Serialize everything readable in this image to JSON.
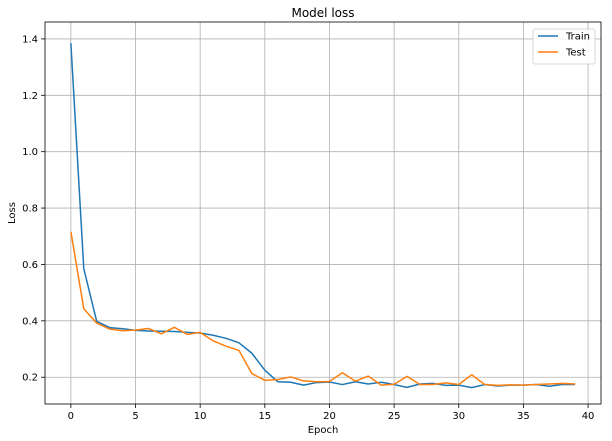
{
  "chart_data": {
    "type": "line",
    "title": "Model loss",
    "xlabel": "Epoch",
    "ylabel": "Loss",
    "xlim": [
      -2,
      41
    ],
    "ylim": [
      0.105,
      1.46
    ],
    "grid": true,
    "legend_position": "top-right",
    "x_ticks": [
      0,
      5,
      10,
      15,
      20,
      25,
      30,
      35,
      40
    ],
    "x_tick_labels": [
      "0",
      "5",
      "10",
      "15",
      "20",
      "25",
      "30",
      "35",
      "40"
    ],
    "y_ticks": [
      0.2,
      0.4,
      0.6,
      0.8,
      1.0,
      1.2,
      1.4
    ],
    "y_tick_labels": [
      "0.2",
      "0.4",
      "0.6",
      "0.8",
      "1.0",
      "1.2",
      "1.4"
    ],
    "x": [
      0,
      1,
      2,
      3,
      4,
      5,
      6,
      7,
      8,
      9,
      10,
      11,
      12,
      13,
      14,
      15,
      16,
      17,
      18,
      19,
      20,
      21,
      22,
      23,
      24,
      25,
      26,
      27,
      28,
      29,
      30,
      31,
      32,
      33,
      34,
      35,
      36,
      37,
      38,
      39
    ],
    "series": [
      {
        "name": "Train",
        "color": "#1f77b4",
        "values": [
          1.385,
          0.585,
          0.398,
          0.376,
          0.372,
          0.366,
          0.364,
          0.363,
          0.362,
          0.359,
          0.357,
          0.349,
          0.338,
          0.322,
          0.285,
          0.225,
          0.184,
          0.182,
          0.172,
          0.181,
          0.183,
          0.174,
          0.184,
          0.176,
          0.182,
          0.174,
          0.164,
          0.176,
          0.178,
          0.171,
          0.172,
          0.163,
          0.174,
          0.169,
          0.172,
          0.172,
          0.174,
          0.168,
          0.174,
          0.174
        ]
      },
      {
        "name": "Test",
        "color": "#ff7f0e",
        "values": [
          0.716,
          0.443,
          0.392,
          0.371,
          0.365,
          0.367,
          0.373,
          0.354,
          0.377,
          0.352,
          0.359,
          0.329,
          0.31,
          0.295,
          0.213,
          0.189,
          0.192,
          0.201,
          0.187,
          0.184,
          0.185,
          0.216,
          0.186,
          0.204,
          0.172,
          0.175,
          0.203,
          0.174,
          0.174,
          0.18,
          0.174,
          0.209,
          0.174,
          0.171,
          0.173,
          0.172,
          0.174,
          0.176,
          0.178,
          0.176
        ]
      }
    ]
  }
}
